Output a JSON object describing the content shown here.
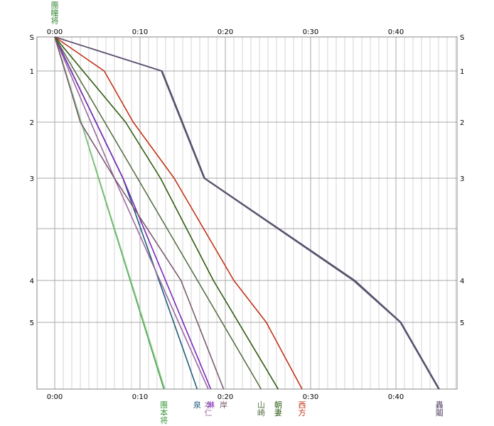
{
  "chart_data": {
    "type": "line",
    "x_unit": "minutes",
    "xlim": [
      0,
      47.5
    ],
    "x_tick_labels": [
      "0:00",
      "0:10",
      "0:20",
      "0:30",
      "0:40"
    ],
    "x_tick_values": [
      0,
      10,
      20,
      30,
      40
    ],
    "grid": true,
    "stations": [
      {
        "label": "S",
        "position": 0
      },
      {
        "label": "1",
        "position": 1
      },
      {
        "label": "2",
        "position": 2
      },
      {
        "label": "3",
        "position": 3
      },
      {
        "label": "",
        "position": 4
      },
      {
        "label": "4",
        "position": 5
      },
      {
        "label": "5",
        "position": 6
      },
      {
        "label": "",
        "position": 7
      }
    ],
    "top_label": {
      "text": "團\n瞳\n将",
      "color": "#3a8a3a"
    },
    "series": [
      {
        "name": "團\n本\n将",
        "color": "#3a9a3a",
        "points": [
          [
            0,
            0
          ],
          [
            12.8,
            7
          ]
        ]
      },
      {
        "name": "",
        "color": "#8ac88a",
        "points": [
          [
            0,
            0
          ],
          [
            12.9,
            7
          ]
        ]
      },
      {
        "name": "泉",
        "color": "#1f5f7a",
        "points": [
          [
            0,
            0
          ],
          [
            8,
            3
          ],
          [
            16.7,
            7
          ]
        ]
      },
      {
        "name": "本\n仁",
        "color": "#9a6aa0",
        "points": [
          [
            0,
            0
          ],
          [
            7,
            3
          ],
          [
            18,
            7
          ]
        ]
      },
      {
        "name": "淋",
        "color": "#7a2ab8",
        "points": [
          [
            0,
            0
          ],
          [
            8,
            3
          ],
          [
            18.3,
            7
          ]
        ]
      },
      {
        "name": "岸",
        "color": "#7a5a70",
        "points": [
          [
            0,
            0
          ],
          [
            3,
            2
          ],
          [
            7,
            3
          ],
          [
            14.8,
            5
          ],
          [
            19.8,
            7
          ]
        ]
      },
      {
        "name": "山\n崎",
        "color": "#5a7048",
        "points": [
          [
            0,
            0
          ],
          [
            24.2,
            7
          ]
        ]
      },
      {
        "name": "朝\n妻",
        "color": "#2e5a10",
        "points": [
          [
            0,
            0
          ],
          [
            8.3,
            2
          ],
          [
            12.4,
            3
          ],
          [
            18.6,
            5
          ],
          [
            26.2,
            7
          ]
        ]
      },
      {
        "name": "西\n方",
        "color": "#c03418",
        "points": [
          [
            0,
            0
          ],
          [
            5.8,
            1
          ],
          [
            9.2,
            2
          ],
          [
            14,
            3
          ],
          [
            21,
            5
          ],
          [
            24.8,
            6
          ],
          [
            29,
            7
          ]
        ]
      },
      {
        "name": "",
        "color": "#505468",
        "points": [
          [
            0,
            0
          ],
          [
            12.5,
            1
          ],
          [
            17.5,
            3
          ],
          [
            35,
            5
          ],
          [
            40.5,
            6
          ],
          [
            45,
            7
          ]
        ]
      },
      {
        "name": "轟\n鬮",
        "color": "#605070",
        "points": [
          [
            0,
            0
          ],
          [
            12.6,
            1
          ],
          [
            17.6,
            3
          ],
          [
            35.2,
            5
          ],
          [
            40.6,
            6
          ],
          [
            45.1,
            7
          ]
        ]
      }
    ]
  }
}
